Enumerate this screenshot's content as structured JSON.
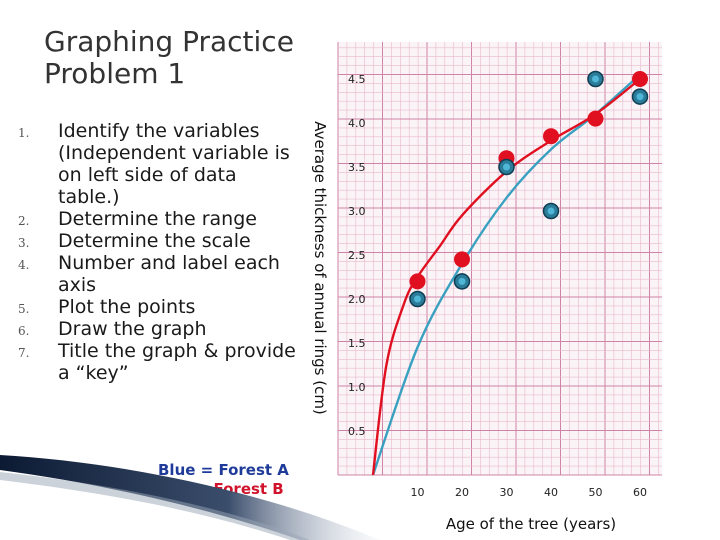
{
  "title": "Graphing Practice\n Problem 1",
  "steps": [
    {
      "num": "1.",
      "text": "Identify the variables (Independent variable is on left side of data table.)"
    },
    {
      "num": "2.",
      "text": "Determine the range"
    },
    {
      "num": "3.",
      "text": "Determine the scale"
    },
    {
      "num": "4.",
      "text": "Number and label each axis"
    },
    {
      "num": "5.",
      "text": "Plot the points"
    },
    {
      "num": "6.",
      "text": "Draw the graph"
    },
    {
      "num": "7.",
      "text": "Title the graph & provide a “key”"
    }
  ],
  "key": {
    "blue": "Blue = Forest A",
    "red": "Red = Forest B"
  },
  "colors": {
    "blue_series": "#3aa0c0",
    "blue_marker": "#2b7c99",
    "red_series": "#e01020",
    "grid_minor": "#e9b8cd",
    "grid_major": "#cf83a6",
    "key_blue": "#1f3b9a",
    "key_red": "#d0122a"
  },
  "chart_data": {
    "type": "scatter",
    "xlabel": "Age of the tree (years)",
    "ylabel": "Average thickness of annual rings (cm)",
    "xlim": [
      0,
      65
    ],
    "ylim": [
      0,
      4.8
    ],
    "x_ticks": [
      "10",
      "20",
      "30",
      "40",
      "50",
      "60"
    ],
    "x_tick_values": [
      10,
      20,
      30,
      40,
      50,
      60
    ],
    "y_ticks": [
      "0.5",
      "1.0",
      "1.5",
      "2.0",
      "2.5",
      "3.0",
      "3.5",
      "4.0",
      "4.5"
    ],
    "y_tick_values": [
      0.5,
      1.0,
      1.5,
      2.0,
      2.5,
      3.0,
      3.5,
      4.0,
      4.5
    ],
    "grid": true,
    "series": [
      {
        "name": "Forest A",
        "color": "#3aa0c0",
        "points": [
          {
            "x": 10,
            "y": 2.0
          },
          {
            "x": 20,
            "y": 2.2
          },
          {
            "x": 30,
            "y": 3.5
          },
          {
            "x": 40,
            "y": 3.0
          },
          {
            "x": 50,
            "y": 4.5
          },
          {
            "x": 60,
            "y": 4.3
          }
        ],
        "curve": [
          [
            0,
            0
          ],
          [
            10,
            1.45
          ],
          [
            20,
            2.4
          ],
          [
            30,
            3.15
          ],
          [
            40,
            3.7
          ],
          [
            50,
            4.1
          ],
          [
            60,
            4.55
          ]
        ]
      },
      {
        "name": "Forest B",
        "color": "#e01020",
        "points": [
          {
            "x": 10,
            "y": 2.2
          },
          {
            "x": 20,
            "y": 2.45
          },
          {
            "x": 30,
            "y": 3.6
          },
          {
            "x": 40,
            "y": 3.85
          },
          {
            "x": 50,
            "y": 4.05
          },
          {
            "x": 60,
            "y": 4.5
          }
        ],
        "curve": [
          [
            0,
            0
          ],
          [
            3,
            1.25
          ],
          [
            7,
            1.95
          ],
          [
            10,
            2.25
          ],
          [
            15,
            2.6
          ],
          [
            20,
            2.95
          ],
          [
            30,
            3.45
          ],
          [
            40,
            3.8
          ],
          [
            50,
            4.1
          ],
          [
            60,
            4.5
          ]
        ]
      }
    ]
  }
}
